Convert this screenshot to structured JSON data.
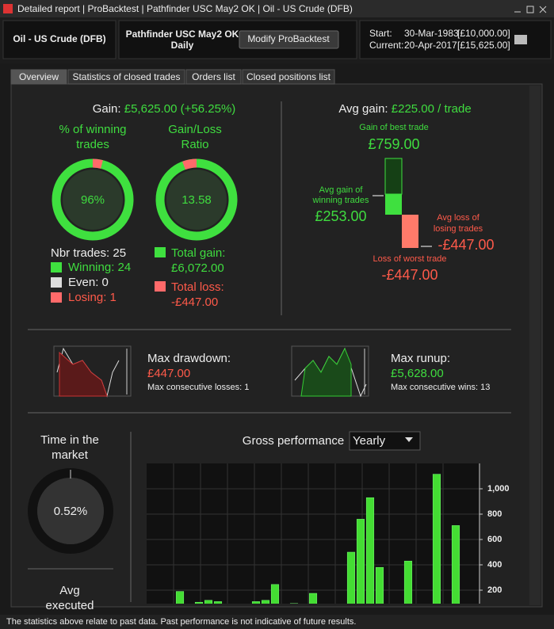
{
  "window": {
    "title": "Detailed report | ProBacktest | Pathfinder USC May2 OK | Oil - US Crude (DFB)"
  },
  "header": {
    "instrument": "Oil - US Crude (DFB)",
    "strategy": "Pathfinder USC May2 OK",
    "timeframe": "Daily",
    "button": "Modify ProBacktest",
    "start_label": "Start:",
    "start_date": "30-Mar-1983",
    "start_capital": "[£10,000.00]",
    "current_label": "Current:",
    "current_date": "20-Apr-2017",
    "current_capital": "[£15,625.00]"
  },
  "tabs": [
    "Overview",
    "Statistics of closed trades",
    "Orders list",
    "Closed positions list"
  ],
  "gain": {
    "label": "Gain:",
    "value": "£5,625.00 (+56.25%)"
  },
  "winning": {
    "title": [
      "% of winning",
      "trades"
    ],
    "value": "96%"
  },
  "ratio": {
    "title": [
      "Gain/Loss",
      "Ratio"
    ],
    "value": "13.58"
  },
  "trades": {
    "label": "Nbr trades: 25",
    "winning": "Winning: 24",
    "even": "Even: 0",
    "losing": "Losing: 1"
  },
  "totals": {
    "gain_label": "Total gain:",
    "gain": "£6,072.00",
    "loss_label": "Total loss:",
    "loss": "-£447.00"
  },
  "avg": {
    "label": "Avg gain:",
    "value": "£225.00 / trade",
    "best_label": "Gain of best trade",
    "best": "£759.00",
    "avg_win_label": [
      "Avg gain of",
      "winning trades"
    ],
    "avg_win": "£253.00",
    "avg_loss_label": [
      "Avg loss of",
      "losing trades"
    ],
    "avg_loss": "-£447.00",
    "worst_label": "Loss of worst trade",
    "worst": "-£447.00"
  },
  "drawdown": {
    "label": "Max drawdown:",
    "value": "£447.00",
    "consec": "Max consecutive losses: 1"
  },
  "runup": {
    "label": "Max runup:",
    "value": "£5,628.00",
    "consec": "Max consecutive wins: 13"
  },
  "market": {
    "title": [
      "Time in the",
      "market"
    ],
    "value": "0.52%",
    "next": [
      "Avg",
      "executed"
    ]
  },
  "footer": "The statistics above relate to past data. Past performance is not indicative of future results.",
  "chart_data": {
    "type": "bar",
    "title": "Gross performance",
    "period": "Yearly",
    "categories": [
      null,
      null,
      null,
      null,
      null,
      null,
      null,
      null,
      null,
      null,
      null,
      null,
      null,
      null,
      null,
      null,
      null,
      null,
      null,
      null,
      null,
      null,
      null,
      null,
      null,
      null,
      null,
      null,
      null,
      null,
      null,
      null,
      null,
      null,
      null
    ],
    "values": [
      0,
      0,
      0,
      190,
      0,
      105,
      120,
      110,
      0,
      0,
      0,
      110,
      120,
      245,
      0,
      95,
      0,
      175,
      0,
      0,
      0,
      500,
      760,
      930,
      380,
      0,
      0,
      430,
      0,
      0,
      1115,
      0,
      710,
      0,
      0
    ],
    "color": "#44dd33",
    "ylim": [
      0,
      1200
    ],
    "yticks": [
      200,
      400,
      600,
      800,
      {
        "value": 1000,
        "label": "1,000"
      }
    ],
    "grid": true
  }
}
